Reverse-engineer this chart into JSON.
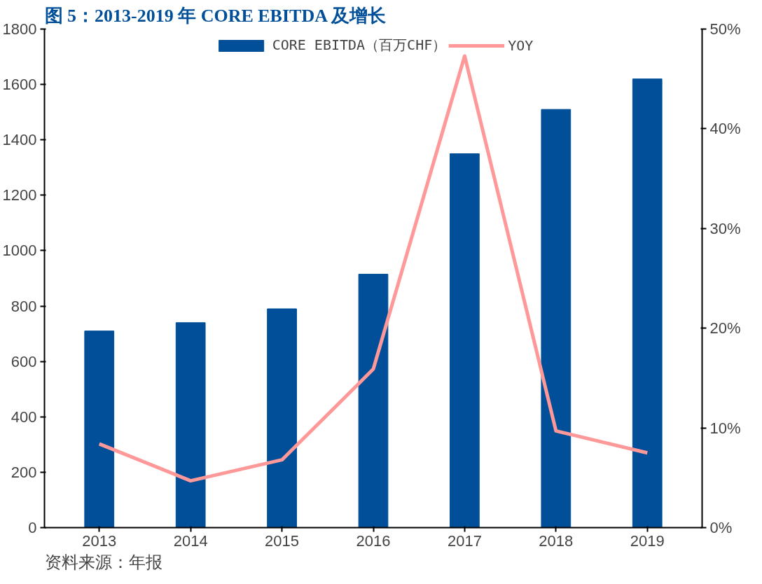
{
  "chart_data": {
    "type": "bar",
    "title": "图 5：2013-2019 年 CORE EBITDA 及增长",
    "categories": [
      "2013",
      "2014",
      "2015",
      "2016",
      "2017",
      "2018",
      "2019"
    ],
    "series": [
      {
        "name": "CORE EBITDA（百万CHF）",
        "color": "#004f98",
        "values": [
          710,
          740,
          790,
          915,
          1350,
          1510,
          1620
        ]
      },
      {
        "name": "YOY",
        "type": "line",
        "axis": "y2",
        "color": "#ff9999",
        "values": [
          8.4,
          4.7,
          6.8,
          15.9,
          47.3,
          9.7,
          7.5
        ]
      }
    ],
    "ylim": [
      0,
      1800
    ],
    "yticks": [
      0,
      200,
      400,
      600,
      800,
      1000,
      1200,
      1400,
      1600,
      1800
    ],
    "y2lim": [
      0,
      50
    ],
    "y2ticks": [
      {
        "value": 0,
        "label": "0%"
      },
      {
        "value": 10,
        "label": "10%"
      },
      {
        "value": 20,
        "label": "20%"
      },
      {
        "value": 30,
        "label": "30%"
      },
      {
        "value": 40,
        "label": "40%"
      },
      {
        "value": 50,
        "label": "50%"
      }
    ],
    "legend": "top",
    "grid": false,
    "marker": "none",
    "line_style": "solid",
    "annotations": [
      "资料来源：年报"
    ]
  }
}
